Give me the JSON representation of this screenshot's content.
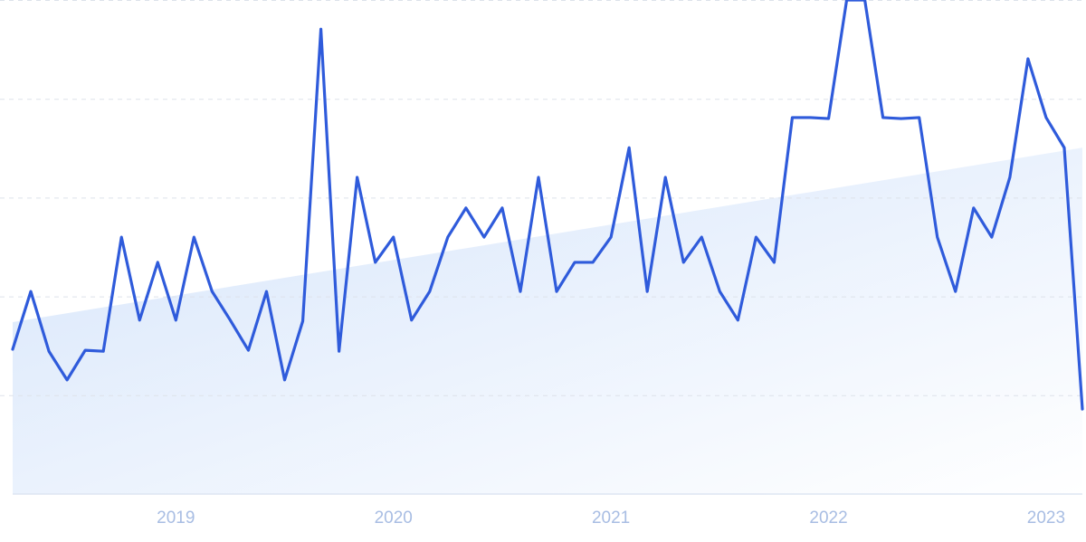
{
  "chart_data": {
    "type": "line",
    "categories": [
      null,
      null,
      null,
      null,
      null,
      null,
      null,
      null,
      null,
      "2019",
      null,
      null,
      null,
      null,
      null,
      null,
      null,
      null,
      null,
      null,
      null,
      "2020",
      null,
      null,
      null,
      null,
      null,
      null,
      null,
      null,
      null,
      null,
      null,
      "2021",
      null,
      null,
      null,
      null,
      null,
      null,
      null,
      null,
      null,
      null,
      null,
      "2022",
      null,
      null,
      null,
      null,
      null,
      null,
      null,
      null,
      null,
      null,
      null,
      "2023",
      null,
      null
    ],
    "values": [
      29.3,
      41.0,
      28.9,
      23.1,
      29.1,
      28.9,
      52.0,
      35.2,
      46.9,
      35.2,
      52.0,
      41.0,
      35.2,
      29.1,
      41.0,
      23.1,
      35.0,
      94.1,
      28.9,
      64.1,
      46.9,
      52.0,
      35.2,
      41.0,
      52.0,
      57.9,
      52.0,
      57.9,
      41.0,
      64.1,
      41.0,
      46.9,
      46.9,
      52.0,
      70.1,
      41.0,
      64.1,
      46.9,
      52.0,
      41.0,
      35.2,
      52.0,
      46.9,
      76.2,
      76.2,
      76.0,
      100,
      100,
      76.2,
      76.0,
      76.2,
      52.0,
      41.0,
      57.9,
      52.0,
      64.1,
      88.1,
      76.2,
      70.1,
      17.2
    ],
    "trend": [
      34.8,
      70.1
    ],
    "color": "#2f5bdb",
    "ylim": [
      0,
      100
    ],
    "yticks": [
      0,
      20,
      40,
      60,
      80,
      100
    ],
    "grid": true
  }
}
